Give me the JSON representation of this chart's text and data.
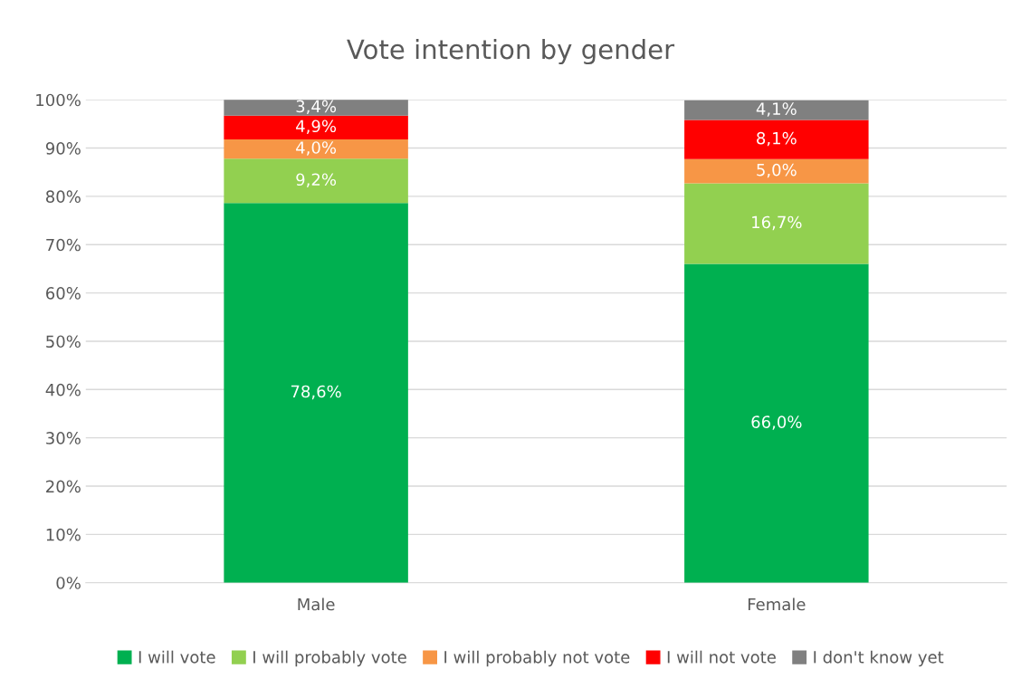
{
  "chart_data": {
    "type": "bar",
    "title": "Vote intention by gender",
    "stacked": true,
    "categories": [
      "Male",
      "Female"
    ],
    "series": [
      {
        "name": "I will vote",
        "color": "#00b050",
        "values": [
          78.6,
          66.0
        ],
        "value_labels": [
          "78,6%",
          "66,0%"
        ]
      },
      {
        "name": "I will probably vote",
        "color": "#92d050",
        "values": [
          9.2,
          16.7
        ],
        "value_labels": [
          "9,2%",
          "16,7%"
        ]
      },
      {
        "name": "I will probably not vote",
        "color": "#f79646",
        "values": [
          4.0,
          5.0
        ],
        "value_labels": [
          "4,0%",
          "5,0%"
        ]
      },
      {
        "name": "I will not vote",
        "color": "#ff0000",
        "values": [
          4.9,
          8.1
        ],
        "value_labels": [
          "4,9%",
          "8,1%"
        ]
      },
      {
        "name": "I don't know yet",
        "color": "#808080",
        "values": [
          3.4,
          4.1
        ],
        "value_labels": [
          "3,4%",
          "4,1%"
        ]
      }
    ],
    "ylim": [
      0,
      100
    ],
    "yticks": [
      {
        "value": 0,
        "label": "0%"
      },
      {
        "value": 10,
        "label": "10%"
      },
      {
        "value": 20,
        "label": "20%"
      },
      {
        "value": 30,
        "label": "30%"
      },
      {
        "value": 40,
        "label": "40%"
      },
      {
        "value": 50,
        "label": "50%"
      },
      {
        "value": 60,
        "label": "60%"
      },
      {
        "value": 70,
        "label": "70%"
      },
      {
        "value": 80,
        "label": "80%"
      },
      {
        "value": 90,
        "label": "90%"
      },
      {
        "value": 100,
        "label": "100%"
      }
    ],
    "grid": "y",
    "legend": "bottom"
  }
}
